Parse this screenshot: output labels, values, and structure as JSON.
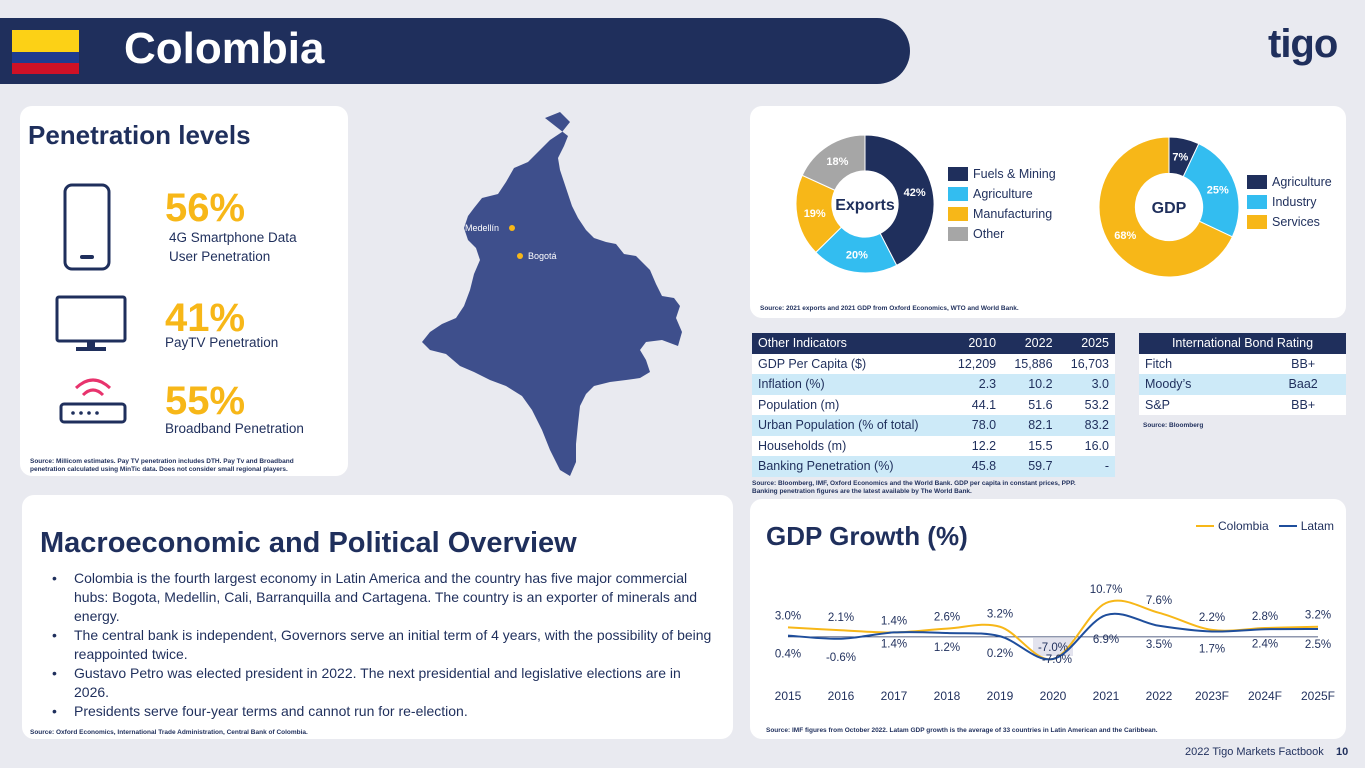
{
  "header": {
    "country": "Colombia",
    "logo": "tigo"
  },
  "flag": {
    "colors": [
      "#fcd116",
      "#1f3b8f",
      "#ce1126"
    ]
  },
  "penetration": {
    "title": "Penetration levels",
    "items": [
      {
        "value": "56%",
        "label_line1": "4G Smartphone Data",
        "label_line2": "User Penetration",
        "icon": "smartphone-icon"
      },
      {
        "value": "41%",
        "label_line1": "PayTV Penetration",
        "label_line2": "",
        "icon": "tv-icon"
      },
      {
        "value": "55%",
        "label_line1": "Broadband Penetration",
        "label_line2": "",
        "icon": "router-icon"
      }
    ],
    "source": "Source: Millicom estimates. Pay TV penetration includes DTH. Pay Tv and Broadband penetration calculated using MinTic data. Does not consider small regional players."
  },
  "map": {
    "cities": [
      "Medellín",
      "Bogotá"
    ]
  },
  "donuts": {
    "exports": {
      "center": "Exports",
      "slices": [
        {
          "label": "Fuels & Mining",
          "value": 42,
          "text": "42%",
          "color": "#1f2f5c"
        },
        {
          "label": "Agriculture",
          "value": 20,
          "text": "20%",
          "color": "#33bdf0"
        },
        {
          "label": "Manufacturing",
          "value": 19,
          "text": "19%",
          "color": "#f7b718"
        },
        {
          "label": "Other",
          "value": 18,
          "text": "18%",
          "color": "#a6a6a6"
        }
      ]
    },
    "gdp": {
      "center": "GDP",
      "slices": [
        {
          "label": "Agriculture",
          "value": 7,
          "text": "7%",
          "color": "#1f2f5c"
        },
        {
          "label": "Industry",
          "value": 25,
          "text": "25%",
          "color": "#33bdf0"
        },
        {
          "label": "Services",
          "value": 68,
          "text": "68%",
          "color": "#f7b718"
        }
      ]
    },
    "source": "Source: 2021 exports and 2021 GDP from Oxford Economics, WTO and World Bank."
  },
  "indicators": {
    "headers": [
      "Other Indicators",
      "2010",
      "2022",
      "2025"
    ],
    "rows": [
      [
        "GDP Per Capita ($)",
        "12,209",
        "15,886",
        "16,703"
      ],
      [
        "Inflation (%)",
        "2.3",
        "10.2",
        "3.0"
      ],
      [
        "Population (m)",
        "44.1",
        "51.6",
        "53.2"
      ],
      [
        "Urban Population (% of total)",
        "78.0",
        "82.1",
        "83.2"
      ],
      [
        "Households (m)",
        "12.2",
        "15.5",
        "16.0"
      ],
      [
        "Banking Penetration (%)",
        "45.8",
        "59.7",
        "-"
      ]
    ],
    "source_line1": "Source: Bloomberg, IMF, Oxford Economics and the World Bank. GDP per capita in constant prices, PPP.",
    "source_line2": "Banking penetration figures are the latest available by The World Bank."
  },
  "bond": {
    "header": "International Bond Rating",
    "rows": [
      [
        "Fitch",
        "BB+"
      ],
      [
        "Moody’s",
        "Baa2"
      ],
      [
        "S&P",
        "BB+"
      ]
    ],
    "source": "Source: Bloomberg"
  },
  "macro": {
    "title": "Macroeconomic and Political Overview",
    "bullets": [
      "Colombia is the fourth largest economy in Latin America and the country has five major commercial hubs: Bogota, Medellin, Cali, Barranquilla and Cartagena. The country is an exporter of minerals and energy.",
      "The central bank is independent, Governors serve an initial term of 4 years, with the possibility of being reappointed twice.",
      "Gustavo Petro was elected president in 2022. The next presidential and legislative elections are in 2026.",
      "Presidents serve four-year terms and cannot run for re-election."
    ],
    "source": "Source: Oxford Economics, International Trade Administration, Central Bank of Colombia."
  },
  "chart_data": {
    "type": "line",
    "title": "GDP Growth (%)",
    "categories": [
      "2015",
      "2016",
      "2017",
      "2018",
      "2019",
      "2020",
      "2021",
      "2022",
      "2023F",
      "2024F",
      "2025F"
    ],
    "series": [
      {
        "name": "Colombia",
        "color": "#f7b718",
        "values": [
          3.0,
          2.1,
          1.4,
          2.6,
          3.2,
          -7.0,
          10.7,
          7.6,
          2.2,
          2.8,
          3.2
        ],
        "labels": [
          "3.0%",
          "2.1%",
          "1.4%",
          "2.6%",
          "3.2%",
          "-7.0%",
          "10.7%",
          "7.6%",
          "2.2%",
          "2.8%",
          "3.2%"
        ]
      },
      {
        "name": "Latam",
        "color": "#1f4e9c",
        "values": [
          0.4,
          -0.6,
          1.4,
          1.2,
          0.2,
          -7.0,
          6.9,
          3.5,
          1.7,
          2.4,
          2.5
        ],
        "labels": [
          "0.4%",
          "-0.6%",
          "1.4%",
          "1.2%",
          "0.2%",
          "-7.0%",
          "6.9%",
          "3.5%",
          "1.7%",
          "2.4%",
          "2.5%"
        ]
      }
    ],
    "legend": "top-right",
    "source": "Source: IMF figures from October 2022. Latam GDP growth is the average of 33 countries in Latin American and the Caribbean."
  },
  "footer": {
    "text": "2022 Tigo Markets Factbook",
    "page": "10"
  }
}
